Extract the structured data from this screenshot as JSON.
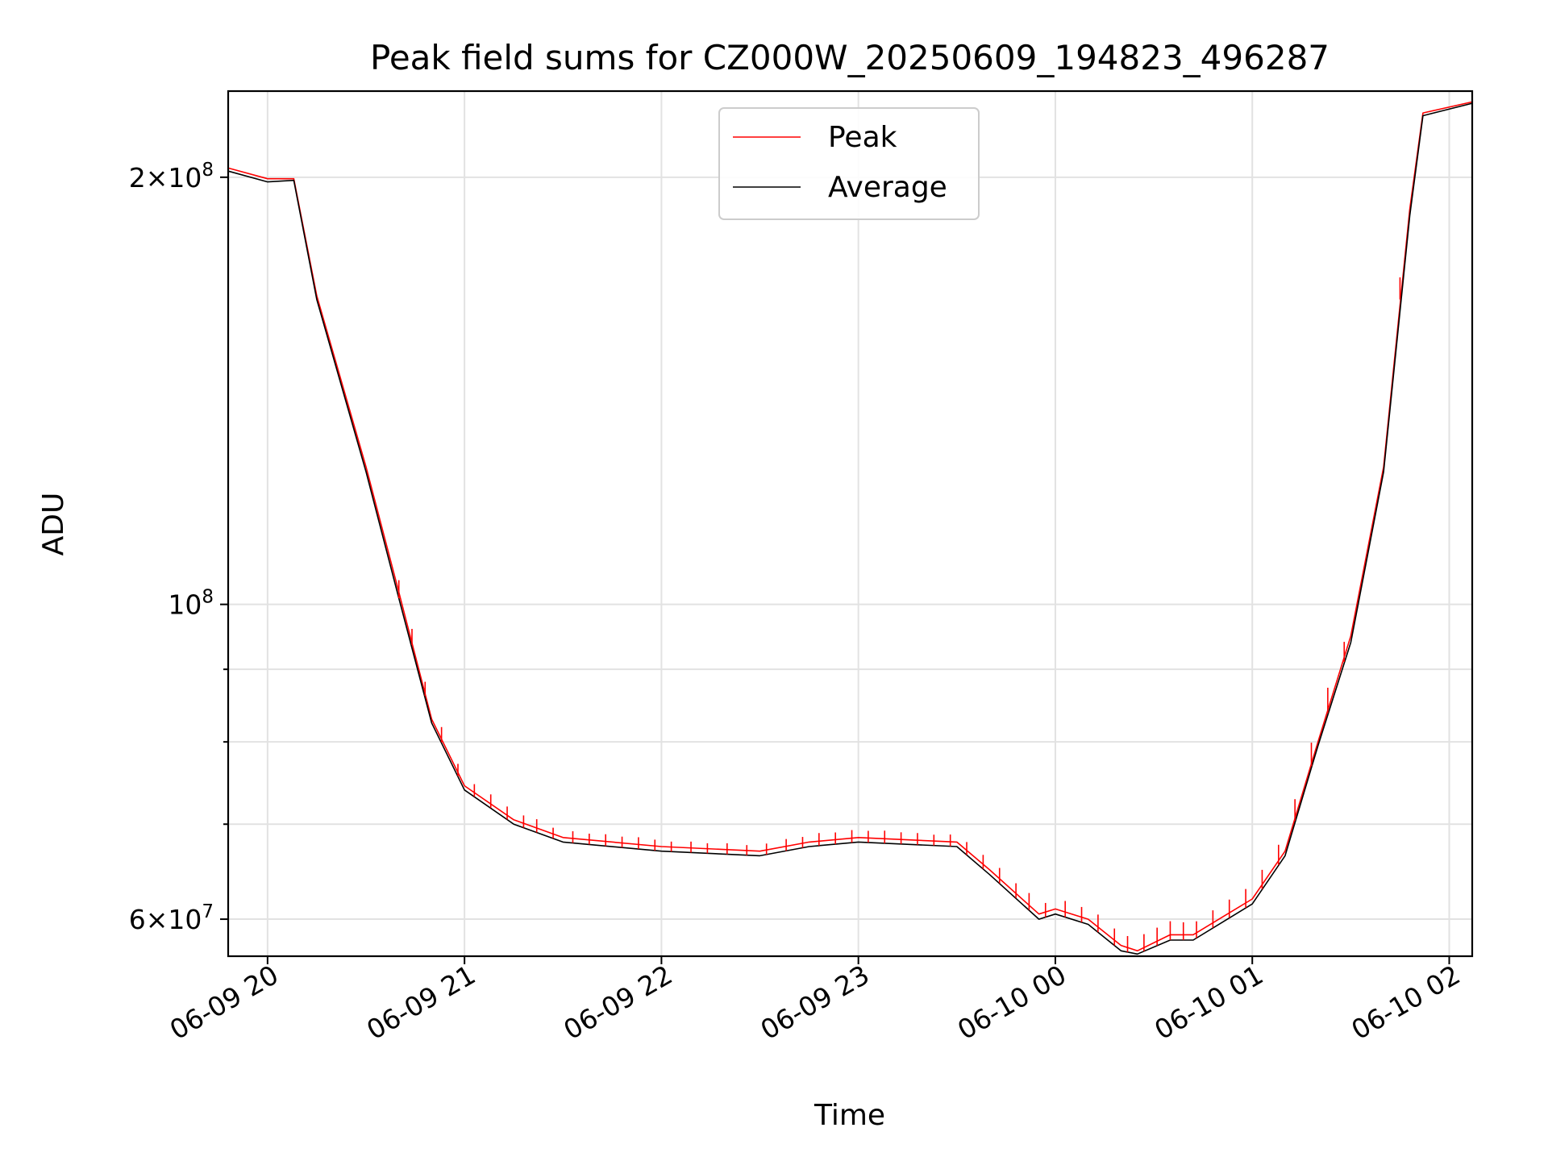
{
  "chart_data": {
    "type": "line",
    "title": "Peak field sums for CZ000W_20250609_194823_496287",
    "xlabel": "Time",
    "ylabel": "ADU",
    "y_scale": "log",
    "ylim": [
      56500000,
      230000000
    ],
    "xlim": [
      "2025-06-09 19:48",
      "2025-06-10 02:07"
    ],
    "grid": true,
    "legend_position": "upper center",
    "x_ticks": [
      {
        "t": "2025-06-09 20:00",
        "label": "06-09 20"
      },
      {
        "t": "2025-06-09 21:00",
        "label": "06-09 21"
      },
      {
        "t": "2025-06-09 22:00",
        "label": "06-09 22"
      },
      {
        "t": "2025-06-09 23:00",
        "label": "06-09 23"
      },
      {
        "t": "2025-06-10 00:00",
        "label": "06-10 00"
      },
      {
        "t": "2025-06-10 01:00",
        "label": "06-10 01"
      },
      {
        "t": "2025-06-10 02:00",
        "label": "06-10 02"
      }
    ],
    "y_major_ticks": [
      {
        "value": 60000000,
        "base": "6",
        "exp": "7"
      },
      {
        "value": 100000000,
        "base": "",
        "exp": "8"
      },
      {
        "value": 200000000,
        "base": "2",
        "exp": "8"
      }
    ],
    "y_minor_ticks": [
      70000000,
      80000000,
      90000000
    ],
    "series": [
      {
        "name": "Peak",
        "color": "#ff0000",
        "points": [
          [
            "2025-06-09 19:48",
            203000000
          ],
          [
            "2025-06-09 20:00",
            199500000
          ],
          [
            "2025-06-09 20:08",
            199500000
          ],
          [
            "2025-06-09 20:15",
            165000000
          ],
          [
            "2025-06-09 20:30",
            125000000
          ],
          [
            "2025-06-09 20:40",
            102000000
          ],
          [
            "2025-06-09 20:50",
            83000000
          ],
          [
            "2025-06-09 21:00",
            74500000
          ],
          [
            "2025-06-09 21:15",
            70500000
          ],
          [
            "2025-06-09 21:30",
            68500000
          ],
          [
            "2025-06-09 22:00",
            67500000
          ],
          [
            "2025-06-09 22:30",
            67000000
          ],
          [
            "2025-06-09 22:45",
            68000000
          ],
          [
            "2025-06-09 23:00",
            68500000
          ],
          [
            "2025-06-09 23:30",
            68000000
          ],
          [
            "2025-06-09 23:40",
            65000000
          ],
          [
            "2025-06-09 23:55",
            60500000
          ],
          [
            "2025-06-10 00:00",
            61000000
          ],
          [
            "2025-06-10 00:10",
            60000000
          ],
          [
            "2025-06-10 00:20",
            57500000
          ],
          [
            "2025-06-10 00:25",
            57000000
          ],
          [
            "2025-06-10 00:35",
            58500000
          ],
          [
            "2025-06-10 00:42",
            58500000
          ],
          [
            "2025-06-10 01:00",
            62000000
          ],
          [
            "2025-06-10 01:10",
            67000000
          ],
          [
            "2025-06-10 01:20",
            80000000
          ],
          [
            "2025-06-10 01:30",
            95000000
          ],
          [
            "2025-06-10 01:40",
            125000000
          ],
          [
            "2025-06-10 01:48",
            190000000
          ],
          [
            "2025-06-10 01:52",
            222000000
          ],
          [
            "2025-06-10 02:07",
            226000000
          ]
        ]
      },
      {
        "name": "Average",
        "color": "#000000",
        "points": [
          [
            "2025-06-09 19:48",
            202000000
          ],
          [
            "2025-06-09 20:00",
            198500000
          ],
          [
            "2025-06-09 20:08",
            199000000
          ],
          [
            "2025-06-09 20:15",
            164000000
          ],
          [
            "2025-06-09 20:30",
            124000000
          ],
          [
            "2025-06-09 20:40",
            101000000
          ],
          [
            "2025-06-09 20:50",
            82500000
          ],
          [
            "2025-06-09 21:00",
            74000000
          ],
          [
            "2025-06-09 21:15",
            70000000
          ],
          [
            "2025-06-09 21:30",
            68000000
          ],
          [
            "2025-06-09 22:00",
            67000000
          ],
          [
            "2025-06-09 22:30",
            66500000
          ],
          [
            "2025-06-09 22:45",
            67500000
          ],
          [
            "2025-06-09 23:00",
            68000000
          ],
          [
            "2025-06-09 23:30",
            67500000
          ],
          [
            "2025-06-09 23:40",
            64500000
          ],
          [
            "2025-06-09 23:55",
            60000000
          ],
          [
            "2025-06-10 00:00",
            60500000
          ],
          [
            "2025-06-10 00:10",
            59500000
          ],
          [
            "2025-06-10 00:20",
            57000000
          ],
          [
            "2025-06-10 00:25",
            56700000
          ],
          [
            "2025-06-10 00:35",
            58000000
          ],
          [
            "2025-06-10 00:42",
            58000000
          ],
          [
            "2025-06-10 01:00",
            61500000
          ],
          [
            "2025-06-10 01:10",
            66500000
          ],
          [
            "2025-06-10 01:20",
            79500000
          ],
          [
            "2025-06-10 01:30",
            94000000
          ],
          [
            "2025-06-10 01:40",
            124000000
          ],
          [
            "2025-06-10 01:48",
            188000000
          ],
          [
            "2025-06-10 01:52",
            221000000
          ],
          [
            "2025-06-10 02:07",
            225500000
          ]
        ]
      }
    ],
    "peak_spikes": [
      [
        "2025-06-09 20:40",
        3000000
      ],
      [
        "2025-06-09 20:44",
        2500000
      ],
      [
        "2025-06-09 20:48",
        2000000
      ],
      [
        "2025-06-09 20:53",
        2000000
      ],
      [
        "2025-06-09 20:58",
        1500000
      ],
      [
        "2025-06-09 21:03",
        1500000
      ],
      [
        "2025-06-09 21:08",
        1600000
      ],
      [
        "2025-06-09 21:13",
        1500000
      ],
      [
        "2025-06-09 21:18",
        1400000
      ],
      [
        "2025-06-09 21:22",
        1500000
      ],
      [
        "2025-06-09 21:27",
        1200000
      ],
      [
        "2025-06-09 21:33",
        1300000
      ],
      [
        "2025-06-09 21:38",
        1200000
      ],
      [
        "2025-06-09 21:43",
        1300000
      ],
      [
        "2025-06-09 21:48",
        1200000
      ],
      [
        "2025-06-09 21:53",
        1300000
      ],
      [
        "2025-06-09 21:58",
        1200000
      ],
      [
        "2025-06-09 22:03",
        1100000
      ],
      [
        "2025-06-09 22:09",
        1200000
      ],
      [
        "2025-06-09 22:14",
        1100000
      ],
      [
        "2025-06-09 22:20",
        1200000
      ],
      [
        "2025-06-09 22:26",
        1100000
      ],
      [
        "2025-06-09 22:32",
        1200000
      ],
      [
        "2025-06-09 22:38",
        1300000
      ],
      [
        "2025-06-09 22:43",
        1200000
      ],
      [
        "2025-06-09 22:48",
        1400000
      ],
      [
        "2025-06-09 22:53",
        1300000
      ],
      [
        "2025-06-09 22:58",
        1400000
      ],
      [
        "2025-06-09 23:03",
        1300000
      ],
      [
        "2025-06-09 23:08",
        1400000
      ],
      [
        "2025-06-09 23:13",
        1300000
      ],
      [
        "2025-06-09 23:18",
        1300000
      ],
      [
        "2025-06-09 23:23",
        1200000
      ],
      [
        "2025-06-09 23:28",
        1300000
      ],
      [
        "2025-06-09 23:33",
        1400000
      ],
      [
        "2025-06-09 23:38",
        1500000
      ],
      [
        "2025-06-09 23:43",
        1600000
      ],
      [
        "2025-06-09 23:48",
        1500000
      ],
      [
        "2025-06-09 23:52",
        1700000
      ],
      [
        "2025-06-09 23:57",
        1400000
      ],
      [
        "2025-06-10 00:03",
        1600000
      ],
      [
        "2025-06-10 00:08",
        1500000
      ],
      [
        "2025-06-10 00:13",
        1700000
      ],
      [
        "2025-06-10 00:18",
        1600000
      ],
      [
        "2025-06-10 00:22",
        1500000
      ],
      [
        "2025-06-10 00:27",
        1600000
      ],
      [
        "2025-06-10 00:31",
        1700000
      ],
      [
        "2025-06-10 00:35",
        1800000
      ],
      [
        "2025-06-10 00:39",
        1700000
      ],
      [
        "2025-06-10 00:43",
        1600000
      ],
      [
        "2025-06-10 00:48",
        1700000
      ],
      [
        "2025-06-10 00:53",
        1800000
      ],
      [
        "2025-06-10 00:58",
        1900000
      ],
      [
        "2025-06-10 01:03",
        2000000
      ],
      [
        "2025-06-10 01:08",
        2200000
      ],
      [
        "2025-06-10 01:13",
        2500000
      ],
      [
        "2025-06-10 01:18",
        3000000
      ],
      [
        "2025-06-10 01:23",
        3500000
      ],
      [
        "2025-06-10 01:28",
        3000000
      ],
      [
        "2025-06-10 01:45",
        6000000
      ]
    ]
  }
}
